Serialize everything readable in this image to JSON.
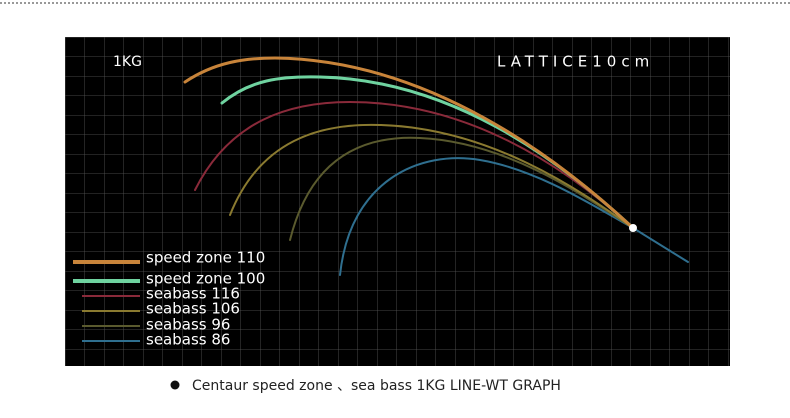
{
  "graph": {
    "weight_label": "1KG",
    "lattice_label": "LATTICE10cm",
    "legend": [
      "speed zone 110",
      "speed zone 100",
      "seabass 116",
      "seabass 106",
      "seabass 96",
      "seabass 86"
    ]
  },
  "caption": "Centaur speed zone 、sea bass 1KG LINE-WT GRAPH"
}
